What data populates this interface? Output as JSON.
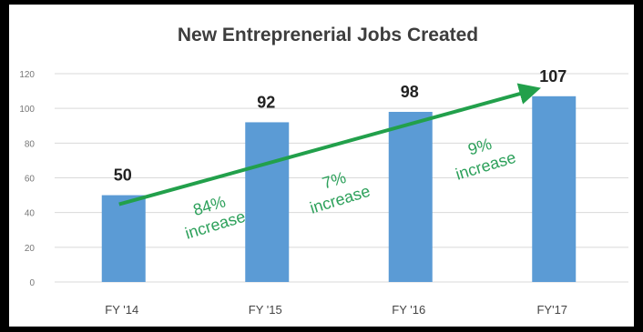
{
  "chart_data": {
    "type": "bar",
    "title": "New Entreprenerial Jobs Created",
    "categories": [
      "FY '14",
      "FY '15",
      "FY '16",
      "FY'17"
    ],
    "values": [
      50,
      92,
      98,
      107
    ],
    "data_labels": [
      "50",
      "92",
      "98",
      "107"
    ],
    "ylim": [
      0,
      120
    ],
    "yticks": [
      "0",
      "20",
      "40",
      "60",
      "80",
      "100",
      "120"
    ],
    "grid": true,
    "legend": "none",
    "xlabel": "",
    "ylabel": "",
    "annotations": [
      {
        "line1": "84%",
        "line2": "increase"
      },
      {
        "line1": "7%",
        "line2": "increase"
      },
      {
        "line1": "9%",
        "line2": "increase"
      }
    ],
    "colors": {
      "bar": "#5b9bd5",
      "trend_arrow": "#22a04b",
      "annotation": "#2ca05a",
      "grid": "#d9d9d9"
    }
  }
}
